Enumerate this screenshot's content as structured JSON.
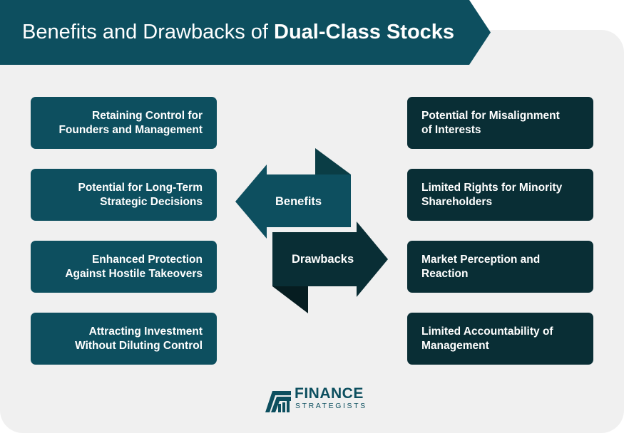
{
  "title": {
    "prefix": "Benefits and Drawbacks of ",
    "emphasis": "Dual-Class Stocks"
  },
  "benefits": {
    "label": "Benefits",
    "items": [
      "Retaining Control for\nFounders and Management",
      "Potential for Long-Term\nStrategic Decisions",
      "Enhanced Protection\nAgainst Hostile Takeovers",
      "Attracting Investment\nWithout Diluting Control"
    ]
  },
  "drawbacks": {
    "label": "Drawbacks",
    "items": [
      "Potential for Misalignment\nof Interests",
      "Limited Rights for Minority\nShareholders",
      "Market Perception and\nReaction",
      "Limited Accountability of\nManagement"
    ]
  },
  "logo": {
    "line1": "FINANCE",
    "line2": "STRATEGISTS",
    "icon": "finance-strategists-logo-icon"
  },
  "colors": {
    "teal": "#0d4f5f",
    "dark_teal": "#092e35",
    "panel": "#f0f0f0"
  }
}
